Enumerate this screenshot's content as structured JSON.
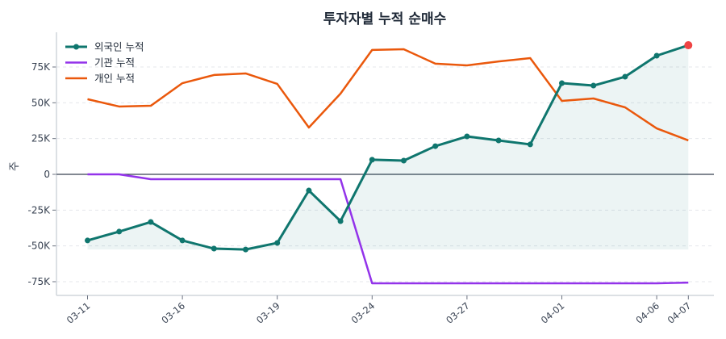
{
  "chart_data": {
    "type": "line",
    "title": "투자자별 누적 순매수",
    "xlabel": "",
    "ylabel": "주",
    "x_tick_labels": [
      {
        "index": 0,
        "label": "03-11"
      },
      {
        "index": 3,
        "label": "03-16"
      },
      {
        "index": 6,
        "label": "03-19"
      },
      {
        "index": 9,
        "label": "03-24"
      },
      {
        "index": 12,
        "label": "03-27"
      },
      {
        "index": 15,
        "label": "04-01"
      },
      {
        "index": 18,
        "label": "04-06"
      },
      {
        "index": 19,
        "label": "04-07"
      }
    ],
    "ylim": [
      -85000,
      100000
    ],
    "y_ticks": [
      -75000,
      -50000,
      -25000,
      0,
      25000,
      50000,
      75000
    ],
    "y_tick_labels": [
      "-75K",
      "-50K",
      "-25K",
      "0",
      "25K",
      "50K",
      "75K"
    ],
    "grid": "horizontal dashed",
    "legend_position": "top-left",
    "series": [
      {
        "name": "외국인 누적",
        "color": "#0f766e",
        "markers": true,
        "fill_area": true,
        "values": [
          -46200,
          -40000,
          -33300,
          -46200,
          -51900,
          -52500,
          -47900,
          -11300,
          -32700,
          10200,
          9600,
          19700,
          26500,
          23700,
          20900,
          63700,
          62000,
          68200,
          82900,
          90200
        ],
        "highlight_last_color": "#ef4444"
      },
      {
        "name": "기관 누적",
        "color": "#9333ea",
        "markers": false,
        "values": [
          0,
          0,
          -3400,
          -3400,
          -3400,
          -3400,
          -3400,
          -3400,
          -3400,
          -76100,
          -76100,
          -76100,
          -76100,
          -76100,
          -76100,
          -76100,
          -76100,
          -76100,
          -76100,
          -75600
        ]
      },
      {
        "name": "개인 누적",
        "color": "#ea580c",
        "markers": false,
        "values": [
          52500,
          47400,
          47900,
          63700,
          69400,
          70500,
          63200,
          32700,
          56400,
          86900,
          87400,
          77300,
          76100,
          78900,
          81200,
          51300,
          53000,
          46800,
          32100,
          23700
        ]
      }
    ]
  }
}
